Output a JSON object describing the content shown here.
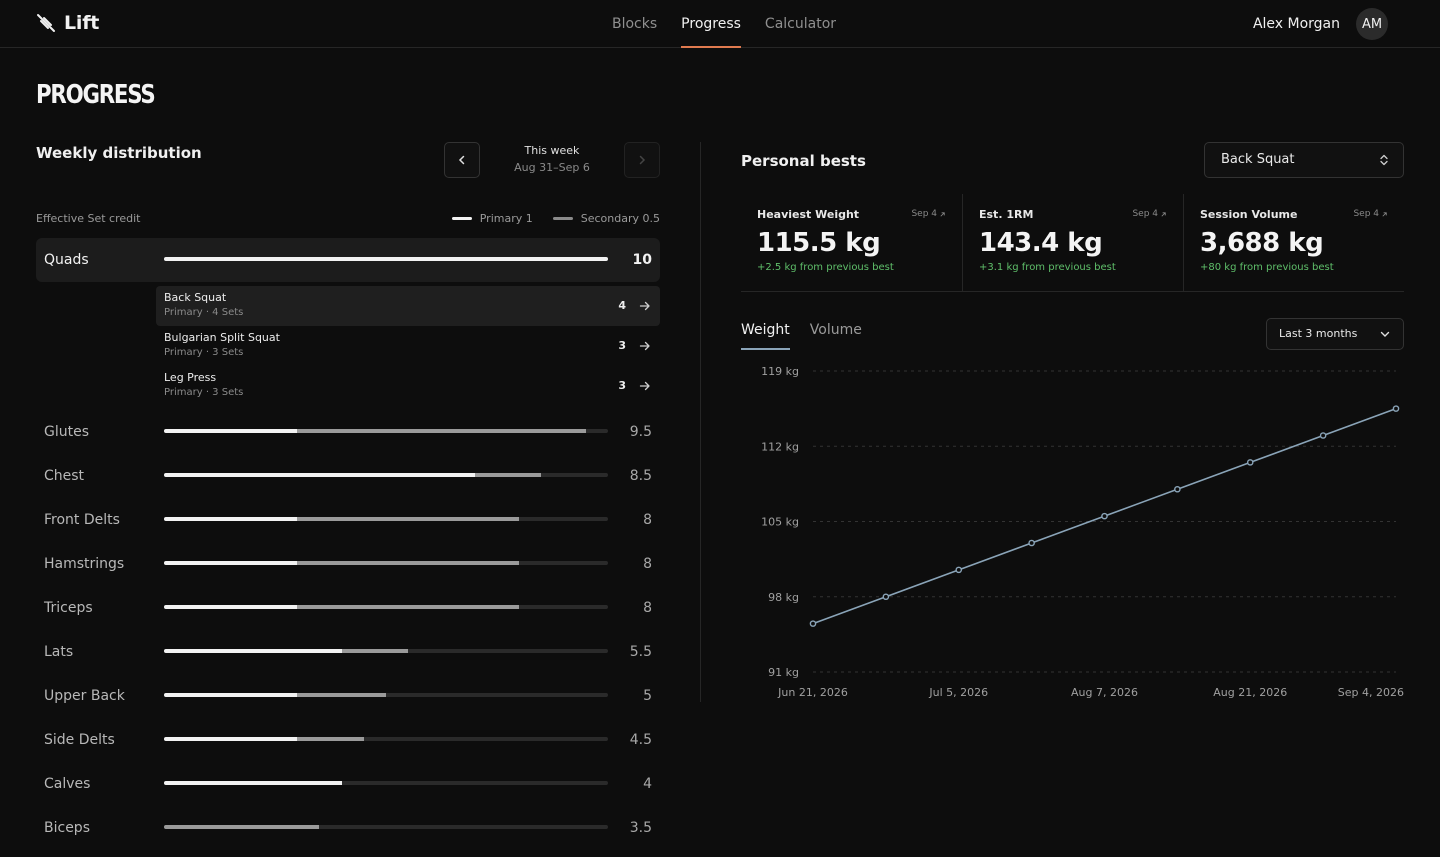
{
  "header": {
    "brand": "Lift",
    "nav": [
      {
        "label": "Blocks",
        "active": false
      },
      {
        "label": "Progress",
        "active": true
      },
      {
        "label": "Calculator",
        "active": false
      }
    ],
    "user_name": "Alex Morgan",
    "avatar_initials": "AM"
  },
  "page_title": "PROGRESS",
  "weekly": {
    "title": "Weekly distribution",
    "week_label": "This week",
    "week_range": "Aug 31–Sep 6",
    "credit_caption": "Effective Set credit",
    "legend": {
      "primary": "Primary 1",
      "secondary": "Secondary 0.5"
    },
    "max_value": 10,
    "muscles": [
      {
        "name": "Quads",
        "value": "10",
        "primary": 10,
        "secondary": 0,
        "expanded": true
      },
      {
        "name": "Glutes",
        "value": "9.5",
        "primary": 3,
        "secondary": 6.5
      },
      {
        "name": "Chest",
        "value": "8.5",
        "primary": 7,
        "secondary": 1.5
      },
      {
        "name": "Front Delts",
        "value": "8",
        "primary": 3,
        "secondary": 5
      },
      {
        "name": "Hamstrings",
        "value": "8",
        "primary": 3,
        "secondary": 5
      },
      {
        "name": "Triceps",
        "value": "8",
        "primary": 3,
        "secondary": 5
      },
      {
        "name": "Lats",
        "value": "5.5",
        "primary": 4,
        "secondary": 1.5
      },
      {
        "name": "Upper Back",
        "value": "5",
        "primary": 3,
        "secondary": 2
      },
      {
        "name": "Side Delts",
        "value": "4.5",
        "primary": 3,
        "secondary": 1.5
      },
      {
        "name": "Calves",
        "value": "4",
        "primary": 4,
        "secondary": 0
      },
      {
        "name": "Biceps",
        "value": "3.5",
        "primary": 0,
        "secondary": 3.5
      }
    ],
    "exercises": [
      {
        "name": "Back Squat",
        "meta": "Primary · 4 Sets",
        "count": "4",
        "active": true
      },
      {
        "name": "Bulgarian Split Squat",
        "meta": "Primary · 3 Sets",
        "count": "3",
        "active": false
      },
      {
        "name": "Leg Press",
        "meta": "Primary · 3 Sets",
        "count": "3",
        "active": false
      }
    ]
  },
  "personal_bests": {
    "title": "Personal bests",
    "selected_lift": "Back Squat",
    "stats": [
      {
        "label": "Heaviest Weight",
        "date": "Sep 4",
        "value": "115.5 kg",
        "delta": "+2.5 kg from previous best"
      },
      {
        "label": "Est. 1RM",
        "date": "Sep 4",
        "value": "143.4 kg",
        "delta": "+3.1 kg from previous best"
      },
      {
        "label": "Session Volume",
        "date": "Sep 4",
        "value": "3,688 kg",
        "delta": "+80 kg from previous best"
      }
    ],
    "tabs": [
      {
        "label": "Weight",
        "active": true
      },
      {
        "label": "Volume",
        "active": false
      }
    ],
    "range": "Last 3 months"
  },
  "colors": {
    "accent": "#e07a4f",
    "primary_bar": "#f2f2f2",
    "secondary_bar": "#9a9a9a",
    "line": "#8aa4b8",
    "positive": "#5fbf6a"
  },
  "chart_data": {
    "type": "line",
    "ylim": [
      91,
      119
    ],
    "y_ticks": [
      {
        "value": 119,
        "label": "119 kg"
      },
      {
        "value": 112,
        "label": "112 kg"
      },
      {
        "value": 105,
        "label": "105 kg"
      },
      {
        "value": 98,
        "label": "98 kg"
      },
      {
        "value": 91,
        "label": "91 kg"
      }
    ],
    "x_ticks": [
      {
        "label": "Jun 21, 2026",
        "index": 0
      },
      {
        "label": "Jul 5, 2026",
        "index": 2
      },
      {
        "label": "Aug 7, 2026",
        "index": 4
      },
      {
        "label": "Aug 21, 2026",
        "index": 6
      },
      {
        "label": "Sep 4, 2026",
        "index": 8
      }
    ],
    "series": [
      {
        "values": [
          95.5,
          98,
          100.5,
          103,
          105.5,
          108,
          110.5,
          113,
          115.5
        ]
      }
    ],
    "grid": true
  }
}
